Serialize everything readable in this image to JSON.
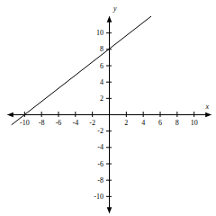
{
  "chart_data": {
    "type": "line",
    "x": [
      -11.5,
      5
    ],
    "values": [
      -1.3,
      12
    ],
    "color": "#000000",
    "xlim": [
      -12,
      12
    ],
    "ylim": [
      -12,
      12
    ],
    "xticks": [
      -10,
      -8,
      -6,
      -4,
      -2,
      2,
      4,
      6,
      8,
      10
    ],
    "yticks": [
      -10,
      -8,
      -6,
      -4,
      -2,
      2,
      4,
      6,
      8,
      10
    ],
    "xlabel": "x",
    "ylabel": "y",
    "grid": false
  }
}
